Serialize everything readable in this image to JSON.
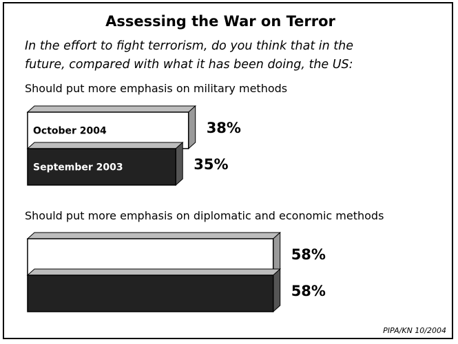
{
  "chart_data": {
    "type": "bar",
    "title": "Assessing the War on Terror",
    "subtitle": "In the effort to fight terrorism, do you think that in the future, compared with what it has been doing, the US:",
    "subtitle_lines": [
      "In the effort to fight terrorism, do you think that in the",
      "future, compared with what it has been doing, the US:"
    ],
    "source": "PIPA/KN 10/2004",
    "value_suffix": "%",
    "series": [
      {
        "name": "October 2004",
        "color": "#ffffff"
      },
      {
        "name": "September 2003",
        "color": "#222222"
      }
    ],
    "groups": [
      {
        "label": "Should put more emphasis on military methods",
        "show_series_labels": true,
        "values": [
          38,
          35
        ]
      },
      {
        "label": "Should put more emphasis on diplomatic and economic methods",
        "show_series_labels": false,
        "values": [
          58,
          58
        ]
      }
    ]
  }
}
